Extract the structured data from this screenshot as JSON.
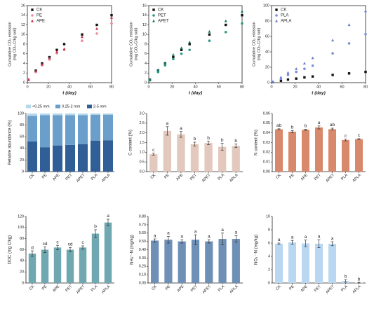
{
  "chart_data": [
    {
      "type": "scatter",
      "panel": "a1",
      "title": "",
      "xlabel": "t (day)",
      "ylabel_lines": [
        "Cumulative CO₂ emission",
        "(mg CO₂-C/kg soil)"
      ],
      "xlim": [
        0,
        80
      ],
      "xticks": [
        0,
        20,
        40,
        60,
        80
      ],
      "ylim": [
        0,
        16
      ],
      "yticks": [
        0,
        2,
        4,
        6,
        8,
        10,
        12,
        14,
        16
      ],
      "grid": false,
      "legend_position": "top-left",
      "x": [
        1,
        8,
        14,
        21,
        28,
        35,
        52,
        66,
        80
      ],
      "series": [
        {
          "name": "CK",
          "marker": "square",
          "color": "#111111",
          "values": [
            0.6,
            2.5,
            4.0,
            5.3,
            6.8,
            8.0,
            10.0,
            12.0,
            14.0
          ]
        },
        {
          "name": "PE",
          "marker": "circle",
          "color": "#f08a9a",
          "values": [
            0.6,
            2.2,
            3.6,
            4.8,
            6.1,
            6.8,
            8.7,
            10.2,
            12.3
          ]
        },
        {
          "name": "APE",
          "marker": "triangle",
          "color": "#c0304a",
          "values": [
            0.6,
            2.4,
            3.8,
            5.1,
            6.4,
            7.0,
            9.5,
            11.2,
            13.5
          ]
        }
      ]
    },
    {
      "type": "scatter",
      "panel": "a2",
      "title": "",
      "xlabel": "t (day)",
      "ylabel_lines": [
        "Cumulative CO₂ emission",
        "(mg CO₂-C/kg soil)"
      ],
      "xlim": [
        0,
        80
      ],
      "xticks": [
        0,
        20,
        40,
        60,
        80
      ],
      "ylim": [
        0,
        16
      ],
      "yticks": [
        0,
        2,
        4,
        6,
        8,
        10,
        12,
        14,
        16
      ],
      "grid": false,
      "legend_position": "top-left",
      "x": [
        1,
        8,
        14,
        21,
        28,
        35,
        52,
        66,
        80
      ],
      "series": [
        {
          "name": "CK",
          "marker": "square",
          "color": "#111111",
          "values": [
            0.6,
            2.5,
            4.0,
            5.3,
            6.8,
            8.0,
            10.0,
            12.0,
            14.0
          ]
        },
        {
          "name": "PET",
          "marker": "circle",
          "color": "#2c9a86",
          "values": [
            0.5,
            2.2,
            3.6,
            4.9,
            6.0,
            6.8,
            8.7,
            10.5,
            12.3
          ]
        },
        {
          "name": "APET",
          "marker": "triangle",
          "color": "#157a6c",
          "values": [
            0.6,
            2.6,
            4.1,
            5.8,
            7.2,
            8.4,
            10.6,
            12.8,
            14.8
          ]
        }
      ]
    },
    {
      "type": "scatter",
      "panel": "a3",
      "title": "",
      "xlabel": "t (day)",
      "ylabel_lines": [
        "Cumulative CO₂ emission",
        "(mg CO₂-C/kg soil)"
      ],
      "xlim": [
        0,
        80
      ],
      "xticks": [
        0,
        20,
        40,
        60,
        80
      ],
      "ylim": [
        0,
        100
      ],
      "yticks": [
        0,
        20,
        40,
        60,
        80,
        100
      ],
      "grid": false,
      "legend_position": "top-left",
      "x": [
        1,
        8,
        14,
        21,
        28,
        35,
        52,
        66,
        80
      ],
      "series": [
        {
          "name": "CK",
          "marker": "square",
          "color": "#111111",
          "values": [
            0.6,
            2.5,
            4.0,
            5.3,
            6.8,
            8.0,
            10.0,
            12.0,
            14.0
          ]
        },
        {
          "name": "PLA",
          "marker": "circle",
          "color": "#7e8fd8",
          "values": [
            1.0,
            5.0,
            10.0,
            14.0,
            18.0,
            22.0,
            38.0,
            51.0,
            63.0
          ]
        },
        {
          "name": "APLA",
          "marker": "triangle",
          "color": "#6a7ccc",
          "values": [
            1.0,
            7.0,
            13.0,
            18.0,
            25.0,
            32.0,
            55.0,
            75.0,
            93.0
          ]
        }
      ]
    },
    {
      "type": "bar",
      "stacked": true,
      "panel": "b1",
      "title": "",
      "xlabel": "",
      "ylabel": "Relative abundance (%)",
      "ylim": [
        0,
        100
      ],
      "yticks": [
        0,
        20,
        40,
        60,
        80,
        100
      ],
      "legend_position": "top",
      "categories": [
        "CK",
        "PE",
        "APE",
        "PET",
        "APET",
        "PLA",
        "APLA"
      ],
      "series": [
        {
          "name": "<0.25 mm",
          "color": "#b6d8ea",
          "values": [
            4,
            3,
            3,
            3,
            3,
            2,
            2
          ]
        },
        {
          "name": "0.25-2 mm",
          "color": "#6a9fcb",
          "values": [
            44,
            55,
            52,
            51,
            50,
            45,
            44
          ]
        },
        {
          "name": "2-5 mm",
          "color": "#2f5f96",
          "values": [
            52,
            42,
            45,
            46,
            47,
            53,
            54
          ]
        }
      ]
    },
    {
      "type": "bar",
      "panel": "b2",
      "title": "",
      "xlabel": "",
      "ylabel": "C content (%)",
      "ylim": [
        0,
        3.0
      ],
      "yticks": [
        0,
        0.5,
        1.0,
        1.5,
        2.0,
        2.5,
        3.0
      ],
      "tick_format": 1,
      "color": "#e3c9bd",
      "categories": [
        "CK",
        "PE",
        "APE",
        "PET",
        "APET",
        "PLA",
        "APLA"
      ],
      "values": [
        0.9,
        2.1,
        1.92,
        1.42,
        1.48,
        1.28,
        1.33
      ],
      "errors": [
        0.05,
        0.22,
        0.15,
        0.1,
        0.09,
        0.18,
        0.09
      ],
      "letters": [
        "c",
        "a",
        "a",
        "b",
        "b",
        "b",
        "b"
      ]
    },
    {
      "type": "bar",
      "panel": "b3",
      "title": "",
      "xlabel": "",
      "ylabel": "N content (%)",
      "ylim": [
        0,
        0.06
      ],
      "yticks": [
        0,
        0.01,
        0.02,
        0.03,
        0.04,
        0.05,
        0.06
      ],
      "tick_format": 2,
      "color": "#d9896b",
      "categories": [
        "CK",
        "PE",
        "APE",
        "PET",
        "APET",
        "PLA",
        "APLA"
      ],
      "values": [
        0.0437,
        0.0412,
        0.0432,
        0.0456,
        0.0438,
        0.0326,
        0.0335
      ],
      "errors": [
        0.0005,
        0.0012,
        0.0006,
        0.0015,
        0.001,
        0.0009,
        0.0006
      ],
      "letters": [
        "ab",
        "b",
        "b",
        "a",
        "ab",
        "c",
        "c"
      ]
    },
    {
      "type": "bar",
      "panel": "c1",
      "title": "",
      "xlabel": "",
      "ylabel": "DOC (mg C/kg)",
      "ylim": [
        0,
        120
      ],
      "yticks": [
        0,
        20,
        40,
        60,
        80,
        100,
        120
      ],
      "tick_format": 0,
      "color": "#6fa8b0",
      "categories": [
        "CK",
        "PE",
        "APE",
        "PET",
        "APET",
        "PLA",
        "APLA"
      ],
      "values": [
        53,
        60,
        64,
        60,
        64,
        89,
        109
      ],
      "errors": [
        5,
        5,
        4,
        4,
        3,
        7,
        6
      ],
      "letters": [
        "d",
        "cd",
        "c",
        "cd",
        "c",
        "b",
        "a"
      ]
    },
    {
      "type": "bar",
      "panel": "c2",
      "title": "",
      "xlabel": "",
      "ylabel": "NH₄⁺-N (mg/kg)",
      "ylim": [
        0,
        0.8
      ],
      "yticks": [
        0,
        0.1,
        0.2,
        0.3,
        0.4,
        0.5,
        0.6,
        0.7,
        0.8
      ],
      "tick_format": 2,
      "color": "#6e8fb6",
      "categories": [
        "CK",
        "PE",
        "APE",
        "PET",
        "APET",
        "PLA",
        "APLA"
      ],
      "values": [
        0.51,
        0.52,
        0.5,
        0.52,
        0.5,
        0.53,
        0.53
      ],
      "errors": [
        0.02,
        0.04,
        0.02,
        0.06,
        0.02,
        0.07,
        0.04
      ],
      "letters": [
        "a",
        "a",
        "a",
        "a",
        "a",
        "a",
        "a"
      ]
    },
    {
      "type": "bar",
      "panel": "c3",
      "title": "",
      "xlabel": "",
      "ylabel": "NO₃⁻-N (mg/kg)",
      "ylim": [
        0,
        10
      ],
      "yticks": [
        0,
        2,
        4,
        6,
        8,
        10
      ],
      "tick_format": 0,
      "color": "#b9d7f0",
      "categories": [
        "CK",
        "PE",
        "APE",
        "PET",
        "APET",
        "PLA",
        "APLA"
      ],
      "values": [
        5.9,
        6.1,
        5.95,
        5.9,
        5.9,
        0.3,
        0.05
      ],
      "errors": [
        0.1,
        0.3,
        0.5,
        0.6,
        0.3,
        0.2,
        0.05
      ],
      "letters": [
        "a",
        "a",
        "a",
        "a",
        "a",
        "b",
        "b"
      ]
    }
  ]
}
